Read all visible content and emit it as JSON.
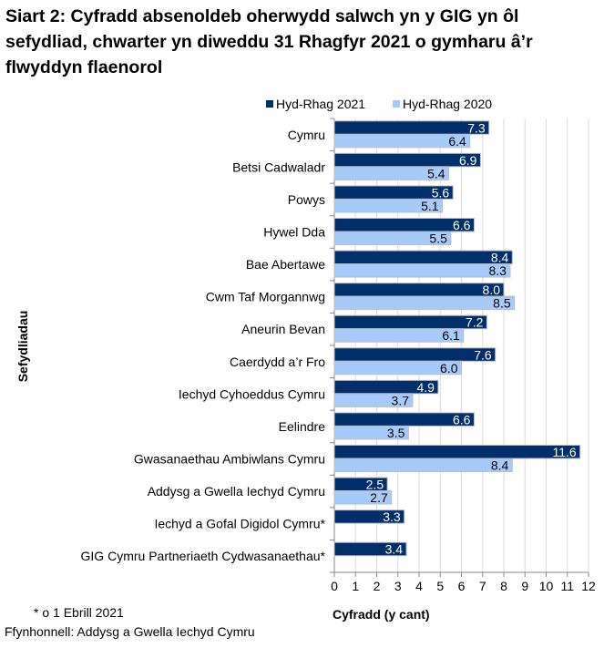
{
  "title": "Siart 2: Cyfradd absenoldeb oherwydd salwch yn y GIG yn ôl sefydliad, chwarter yn diweddu 31 Rhagfyr 2021 o gymharu â’r flwyddyn flaenorol",
  "footnote": "* o 1 Ebrill 2021",
  "source": "Ffynhonnell: Addysg a Gwella Iechyd Cymru",
  "colors": {
    "series_2021": "#002F6C",
    "series_2020": "#A6CBFA",
    "bar_border": "#BDBDBD",
    "grid": "#D9D9D9"
  },
  "chart_data": {
    "type": "bar",
    "orientation": "horizontal",
    "title": "Siart 2: Cyfradd absenoldeb oherwydd salwch yn y GIG yn ôl sefydliad, chwarter yn diweddu 31 Rhagfyr 2021 o gymharu â’r flwyddyn flaenorol",
    "xlabel": "Cyfradd (y cant)",
    "ylabel": "Sefydliadau",
    "xlim": [
      0,
      12
    ],
    "xticks": [
      "0",
      "1",
      "2",
      "3",
      "4",
      "5",
      "6",
      "7",
      "8",
      "9",
      "10",
      "11",
      "12"
    ],
    "grid": true,
    "legend": "top",
    "categories": [
      "Cymru",
      "Betsi Cadwaladr",
      "Powys",
      "Hywel Dda",
      "Bae Abertawe",
      "Cwm Taf Morgannwg",
      "Aneurin Bevan",
      "Caerdydd a’r Fro",
      "Iechyd Cyhoeddus Cymru",
      "Eelindre",
      "Gwasanaethau Ambiwlans Cymru",
      "Addysg a Gwella Iechyd Cymru",
      "Iechyd a Gofal Digidol Cymru*",
      "GIG Cymru Partneriaeth Cydwasanaethau*"
    ],
    "series": [
      {
        "name": "Hyd-Rhag 2021",
        "values": [
          7.3,
          6.9,
          5.6,
          6.6,
          8.4,
          8.0,
          7.2,
          7.6,
          4.9,
          6.6,
          11.6,
          2.5,
          3.3,
          3.4
        ],
        "labels": [
          "7.3",
          "6.9",
          "5.6",
          "6.6",
          "8.4",
          "8.0",
          "7.2",
          "7.6",
          "4.9",
          "6.6",
          "11.6",
          "2.5",
          "3.3",
          "3.4"
        ]
      },
      {
        "name": "Hyd-Rhag 2020",
        "values": [
          6.4,
          5.4,
          5.1,
          5.5,
          8.3,
          8.5,
          6.1,
          6.0,
          3.7,
          3.5,
          8.4,
          2.7,
          null,
          null
        ],
        "labels": [
          "6.4",
          "5.4",
          "5.1",
          "5.5",
          "8.3",
          "8.5",
          "6.1",
          "6.0",
          "3.7",
          "3.5",
          "8.4",
          "2.7",
          null,
          null
        ]
      }
    ]
  }
}
